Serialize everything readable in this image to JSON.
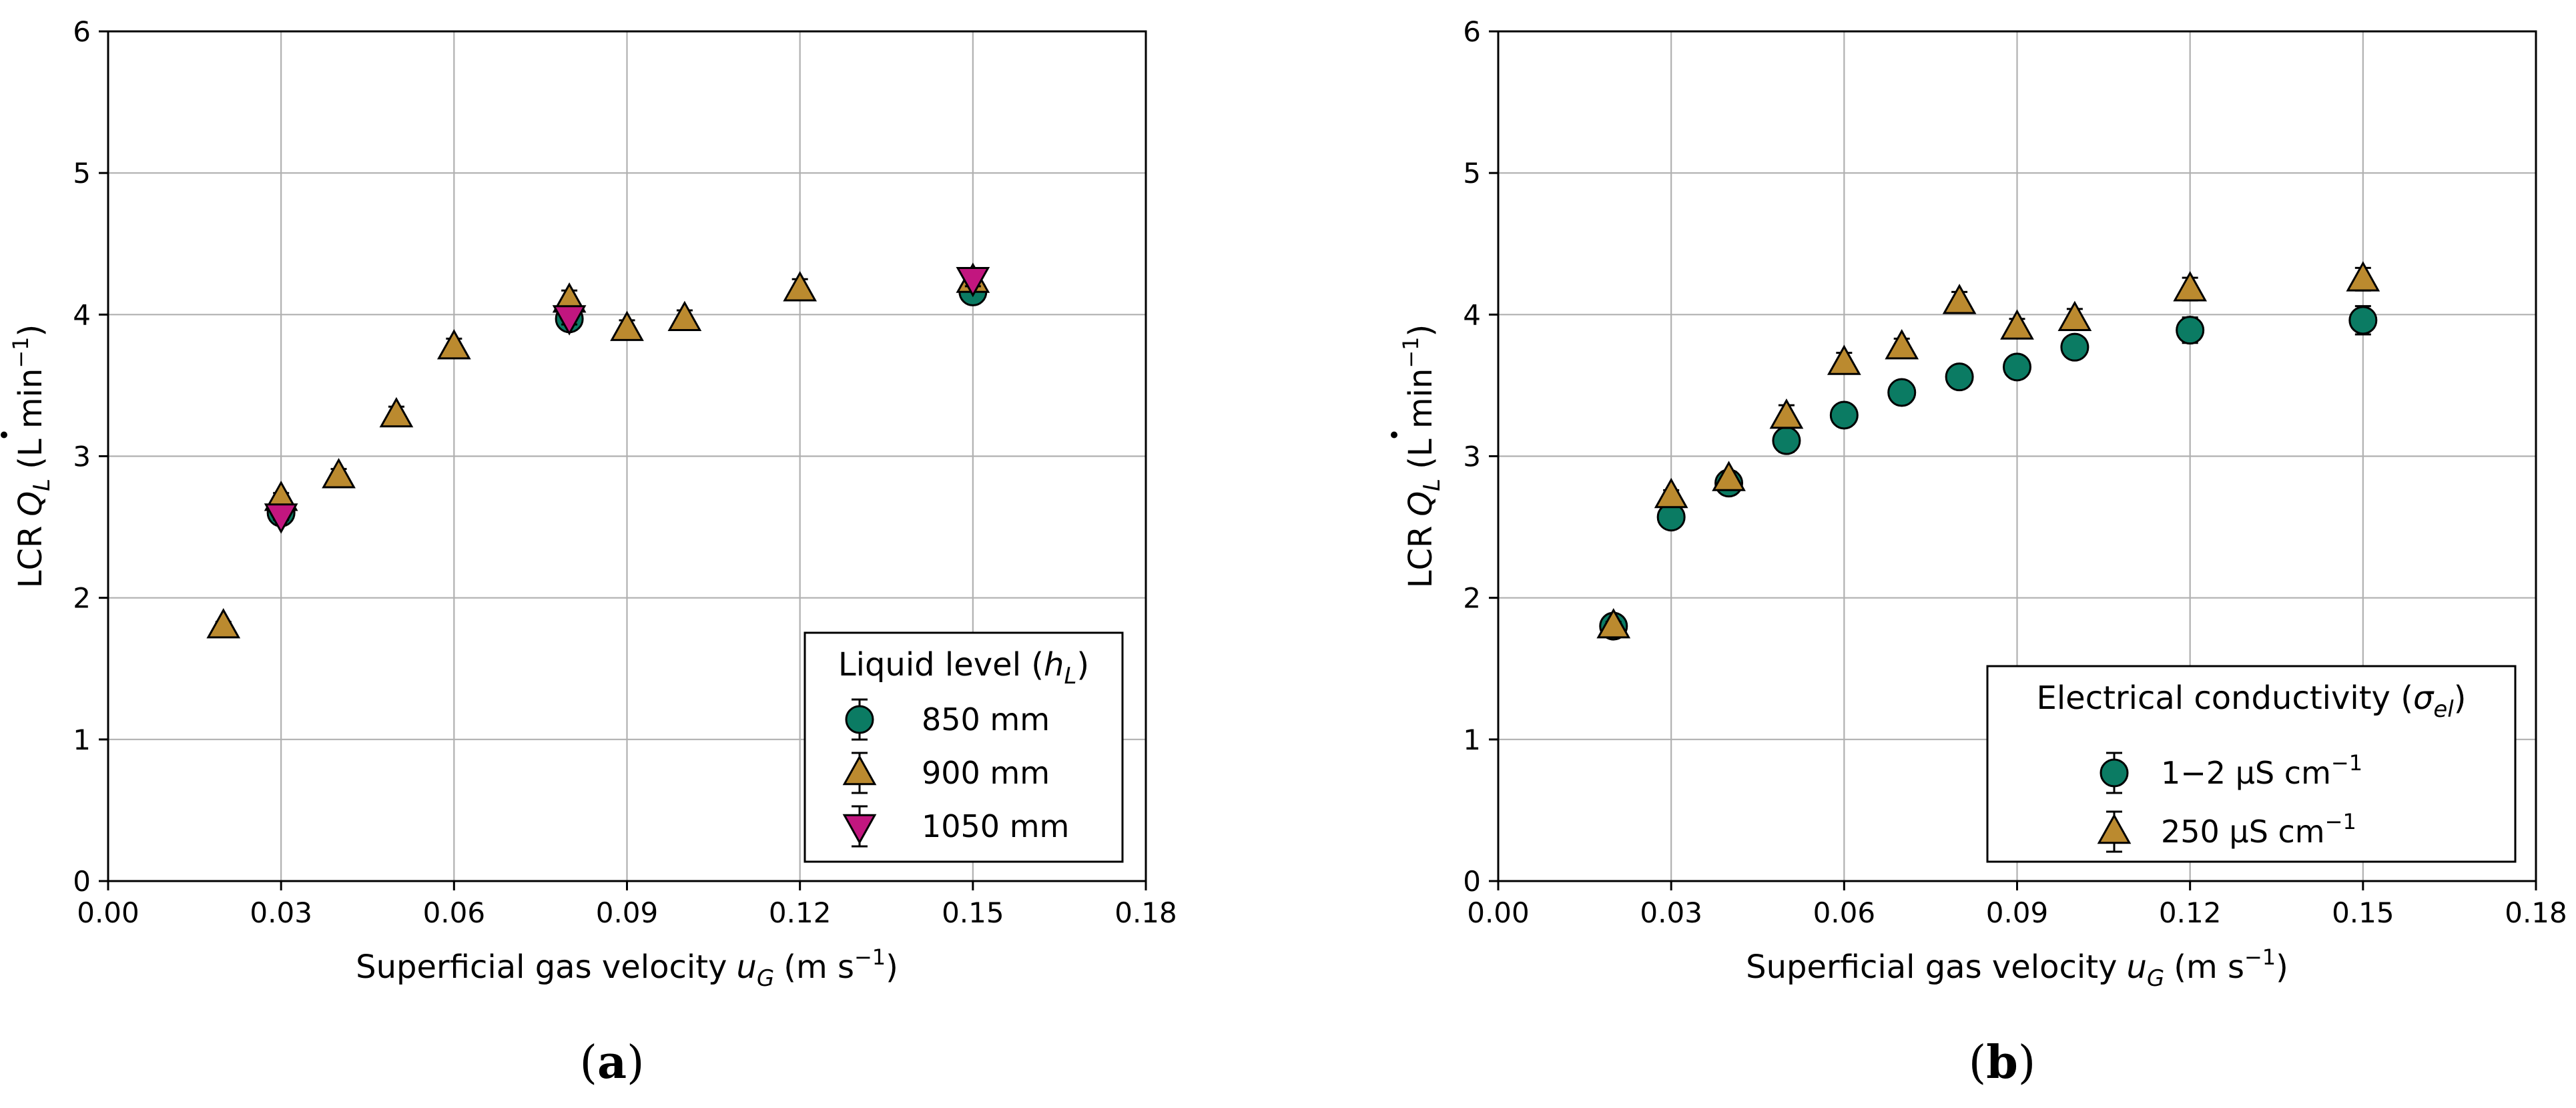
{
  "colors": {
    "green": "#0b7b63",
    "gold": "#bb8a2f",
    "magenta": "#c2167f",
    "grid": "#b0b0b0",
    "errorbar": "#000000"
  },
  "chart_data": [
    {
      "type": "scatter",
      "panel_label": "(a)",
      "panel_letter": "a",
      "xlabel": "Superficial gas velocity",
      "xlabel_symbol": "u",
      "xlabel_sub": "G",
      "xlabel_unit": "(m s",
      "xlabel_unit_sup": "−1",
      "xlabel_unit_end": ")",
      "ylabel": "LCR",
      "ylabel_symbol": "Q",
      "ylabel_sub": "L",
      "ylabel_unit": "(L min",
      "ylabel_unit_sup": "−1",
      "ylabel_unit_end": ")",
      "xlim": [
        0,
        0.18
      ],
      "ylim": [
        0,
        6
      ],
      "xticks": [
        "0.00",
        "0.03",
        "0.06",
        "0.09",
        "0.12",
        "0.15",
        "0.18"
      ],
      "yticks": [
        "0",
        "1",
        "2",
        "3",
        "4",
        "5",
        "6"
      ],
      "grid": true,
      "legend_position": "lower-right",
      "legend_title": "Liquid level (",
      "legend_title_symbol": "h",
      "legend_title_sub": "L",
      "legend_title_end": ")",
      "series": [
        {
          "name": "850 mm",
          "marker": "circle",
          "color": "#0b7b63",
          "x": [
            0.03,
            0.08,
            0.15
          ],
          "y": [
            2.6,
            3.97,
            4.16
          ],
          "err": [
            0.04,
            0.05,
            0.05
          ]
        },
        {
          "name": "900 mm",
          "marker": "triangle-up",
          "color": "#bb8a2f",
          "x": [
            0.02,
            0.03,
            0.04,
            0.05,
            0.06,
            0.08,
            0.09,
            0.1,
            0.12,
            0.15
          ],
          "y": [
            1.8,
            2.7,
            2.86,
            3.29,
            3.77,
            4.1,
            3.9,
            3.97,
            4.18,
            4.24
          ],
          "err": [
            0.03,
            0.04,
            0.05,
            0.06,
            0.06,
            0.07,
            0.06,
            0.06,
            0.07,
            0.07
          ]
        },
        {
          "name": "1050 mm",
          "marker": "triangle-down",
          "color": "#c2167f",
          "x": [
            0.03,
            0.08,
            0.15
          ],
          "y": [
            2.58,
            3.98,
            4.25
          ],
          "err": [
            0.03,
            0.05,
            0.05
          ]
        }
      ]
    },
    {
      "type": "scatter",
      "panel_label": "(b)",
      "panel_letter": "b",
      "xlabel": "Superficial gas velocity",
      "xlabel_symbol": "u",
      "xlabel_sub": "G",
      "xlabel_unit": "(m s",
      "xlabel_unit_sup": "−1",
      "xlabel_unit_end": ")",
      "ylabel": "LCR",
      "ylabel_symbol": "Q",
      "ylabel_sub": "L",
      "ylabel_unit": "(L min",
      "ylabel_unit_sup": "−1",
      "ylabel_unit_end": ")",
      "xlim": [
        0,
        0.18
      ],
      "ylim": [
        0,
        6
      ],
      "xticks": [
        "0.00",
        "0.03",
        "0.06",
        "0.09",
        "0.12",
        "0.15",
        "0.18"
      ],
      "yticks": [
        "0",
        "1",
        "2",
        "3",
        "4",
        "5",
        "6"
      ],
      "grid": true,
      "legend_position": "lower-right",
      "legend_title": "Electrical conductivity (",
      "legend_title_symbol": "σ",
      "legend_title_sub": "el",
      "legend_title_end": ")",
      "series": [
        {
          "name": "1−2 µS cm",
          "name_sup": "−1",
          "marker": "circle",
          "color": "#0b7b63",
          "x": [
            0.02,
            0.03,
            0.04,
            0.05,
            0.06,
            0.07,
            0.08,
            0.09,
            0.1,
            0.12,
            0.15
          ],
          "y": [
            1.8,
            2.57,
            2.81,
            3.11,
            3.29,
            3.45,
            3.56,
            3.63,
            3.77,
            3.89,
            3.96
          ],
          "err": [
            0.03,
            0.04,
            0.05,
            0.08,
            0.05,
            0.05,
            0.06,
            0.06,
            0.07,
            0.09,
            0.1
          ]
        },
        {
          "name": "250 µS cm",
          "name_sup": "−1",
          "marker": "triangle-up",
          "color": "#bb8a2f",
          "x": [
            0.02,
            0.03,
            0.04,
            0.05,
            0.06,
            0.07,
            0.08,
            0.09,
            0.1,
            0.12,
            0.15
          ],
          "y": [
            1.8,
            2.72,
            2.84,
            3.28,
            3.66,
            3.77,
            4.09,
            3.91,
            3.97,
            4.18,
            4.25
          ],
          "err": [
            0.03,
            0.04,
            0.05,
            0.08,
            0.07,
            0.06,
            0.07,
            0.06,
            0.07,
            0.08,
            0.08
          ]
        }
      ]
    }
  ]
}
